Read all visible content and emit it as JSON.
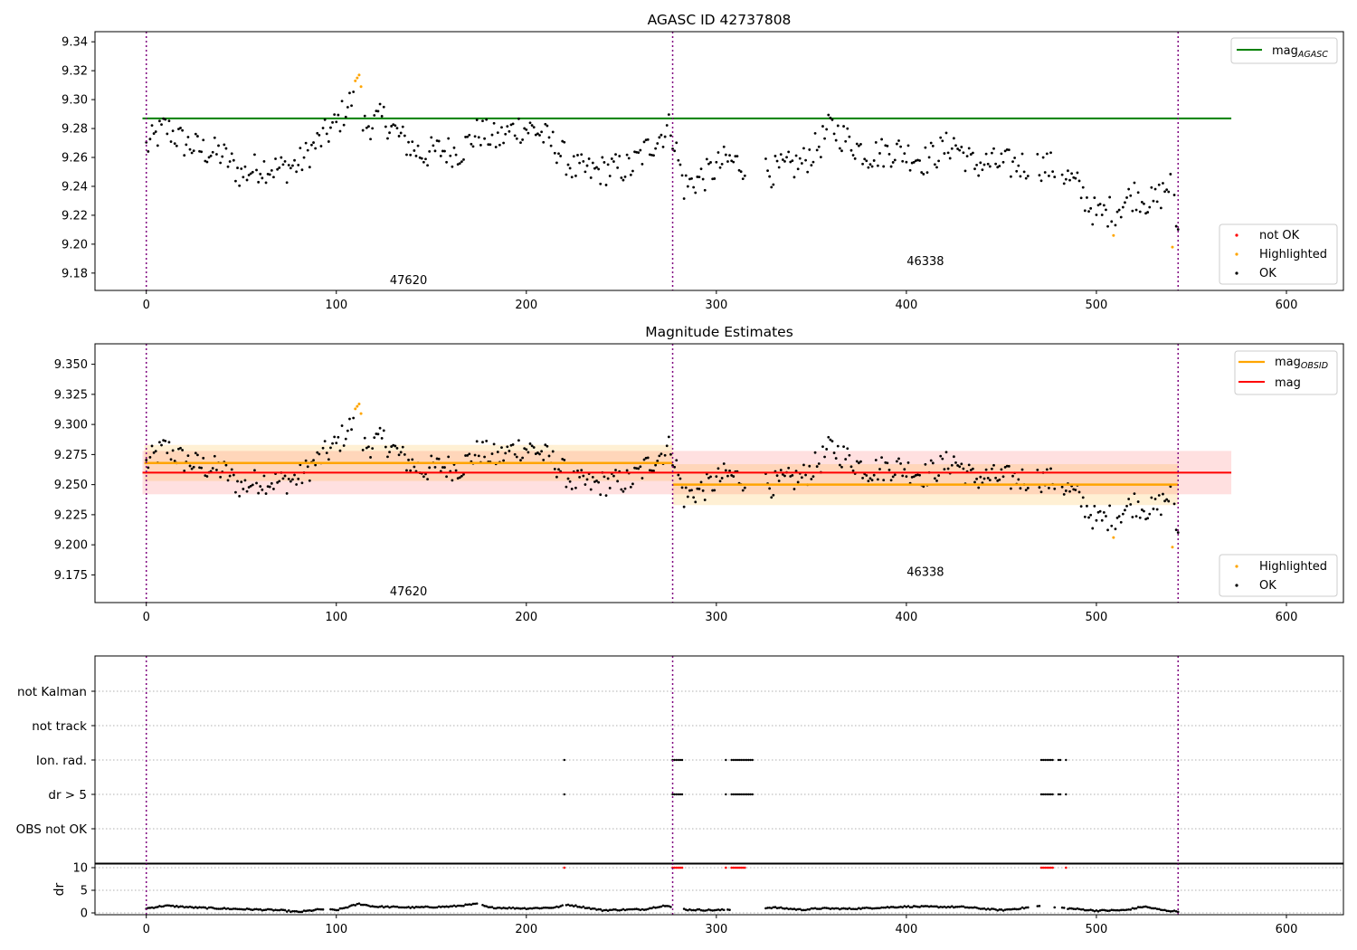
{
  "chart_data": [
    {
      "type": "scatter",
      "title": "AGASC ID 42737808",
      "xlim": [
        -27,
        630
      ],
      "ylim": [
        9.168,
        9.347
      ],
      "x_ticks": [
        0,
        100,
        200,
        300,
        400,
        500,
        600
      ],
      "y_ticks": [
        9.18,
        9.2,
        9.22,
        9.24,
        9.26,
        9.28,
        9.3,
        9.32,
        9.34
      ],
      "y_tick_labels": [
        "9.18",
        "9.20",
        "9.22",
        "9.24",
        "9.26",
        "9.28",
        "9.30",
        "9.32",
        "9.34"
      ],
      "obsid_boundaries": [
        0,
        277,
        543
      ],
      "obsid_labels": [
        {
          "text": "47620",
          "x": 138,
          "y": 9.175
        },
        {
          "text": "46338",
          "x": 410,
          "y": 9.188
        }
      ],
      "reference_lines": [
        {
          "name": "mag",
          "subscript": "AGASC",
          "y": 9.287,
          "x_range": [
            -2,
            571
          ],
          "color": "#008000"
        }
      ],
      "highlighted_points": [
        {
          "x": 110,
          "y": 9.313
        },
        {
          "x": 111,
          "y": 9.315
        },
        {
          "x": 112,
          "y": 9.317
        },
        {
          "x": 113,
          "y": 9.309
        },
        {
          "x": 509,
          "y": 9.206
        },
        {
          "x": 540,
          "y": 9.198
        }
      ],
      "legend": {
        "position": "upper right / lower right",
        "entries": [
          {
            "label": "mag",
            "subscript": "AGASC",
            "kind": "line",
            "color": "#008000"
          },
          {
            "label": "not OK",
            "kind": "dot",
            "color": "#ff0000"
          },
          {
            "label": "Highlighted",
            "kind": "dot",
            "color": "#ffa500"
          },
          {
            "label": "OK",
            "kind": "dot",
            "color": "#000000"
          }
        ]
      }
    },
    {
      "type": "scatter",
      "title": "Magnitude Estimates",
      "xlim": [
        -27,
        630
      ],
      "ylim": [
        9.152,
        9.367
      ],
      "x_ticks": [
        0,
        100,
        200,
        300,
        400,
        500,
        600
      ],
      "y_ticks": [
        9.175,
        9.2,
        9.225,
        9.25,
        9.275,
        9.3,
        9.325,
        9.35
      ],
      "y_tick_labels": [
        "9.175",
        "9.200",
        "9.225",
        "9.250",
        "9.275",
        "9.300",
        "9.325",
        "9.350"
      ],
      "obsid_boundaries": [
        0,
        277,
        543
      ],
      "obsid_labels": [
        {
          "text": "47620",
          "x": 138,
          "y": 9.161
        },
        {
          "text": "46338",
          "x": 410,
          "y": 9.177
        }
      ],
      "mag": {
        "y": 9.26,
        "band": [
          9.242,
          9.278
        ],
        "x_range": [
          -2,
          571
        ],
        "color": "#ff0000"
      },
      "mag_obsid": [
        {
          "y": 9.268,
          "band": [
            9.253,
            9.283
          ],
          "x_range": [
            -1,
            277
          ],
          "color": "#ffa500"
        },
        {
          "y": 9.25,
          "band": [
            9.233,
            9.267
          ],
          "x_range": [
            277,
            543
          ],
          "color": "#ffa500"
        }
      ],
      "legend": {
        "position": "upper right / lower right",
        "entries": [
          {
            "label": "mag",
            "subscript": "OBSID",
            "kind": "line",
            "color": "#ffa500"
          },
          {
            "label": "mag",
            "kind": "line",
            "color": "#ff0000"
          },
          {
            "label": "Highlighted",
            "kind": "dot",
            "color": "#ffa500"
          },
          {
            "label": "OK",
            "kind": "dot",
            "color": "#000000"
          }
        ]
      }
    },
    {
      "type": "scatter",
      "xlim": [
        -27,
        630
      ],
      "categories": [
        "OBS not OK",
        "dr > 5",
        "Ion. rad.",
        "not track",
        "not Kalman"
      ],
      "obsid_boundaries": [
        0,
        277,
        543
      ],
      "flag_rows": [
        {
          "row": "Ion. rad.",
          "x_ranges": [
            [
              220,
              220
            ],
            [
              277,
              282
            ],
            [
              305,
              305
            ],
            [
              308,
              319
            ],
            [
              471,
              477
            ],
            [
              480,
              481
            ],
            [
              484,
              484
            ]
          ]
        },
        {
          "row": "dr > 5",
          "x_ranges": [
            [
              220,
              220
            ],
            [
              277,
              282
            ],
            [
              305,
              305
            ],
            [
              308,
              319
            ],
            [
              471,
              477
            ],
            [
              480,
              481
            ],
            [
              484,
              484
            ]
          ]
        }
      ]
    },
    {
      "type": "scatter",
      "ylabel": "dr",
      "xlim": [
        -27,
        630
      ],
      "ylim": [
        -0.4,
        11
      ],
      "x_ticks": [
        0,
        100,
        200,
        300,
        400,
        500,
        600
      ],
      "y_ticks": [
        0,
        5,
        10
      ],
      "y_tick_labels": [
        "0",
        "5",
        "10"
      ],
      "obsid_boundaries": [
        0,
        277,
        543
      ],
      "clipped_points_at": 10,
      "clipped_ranges": [
        [
          220,
          220
        ],
        [
          277,
          282
        ],
        [
          305,
          305
        ],
        [
          308,
          319
        ],
        [
          471,
          477
        ],
        [
          480,
          481
        ],
        [
          484,
          484
        ]
      ],
      "gaps": [
        [
          94,
          96
        ],
        [
          175,
          176
        ],
        [
          316,
          325
        ],
        [
          465,
          468
        ],
        [
          479,
          481
        ]
      ]
    }
  ]
}
